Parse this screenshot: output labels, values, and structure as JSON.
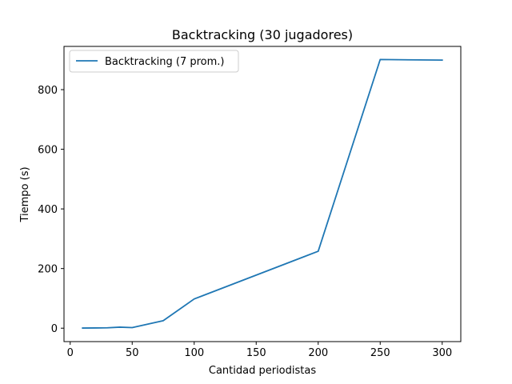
{
  "chart_data": {
    "type": "line",
    "title": "Backtracking (30 jugadores)",
    "xlabel": "Cantidad periodistas",
    "ylabel": "Tiempo (s)",
    "xlim": [
      -5,
      315
    ],
    "ylim": [
      -45,
      945
    ],
    "xticks": [
      0,
      50,
      100,
      150,
      200,
      250,
      300
    ],
    "yticks": [
      0,
      200,
      400,
      600,
      800
    ],
    "grid": false,
    "legend_position": "top-left",
    "series": [
      {
        "name": "Backtracking (7 prom.)",
        "color": "#1f77b4",
        "x": [
          10,
          20,
          30,
          40,
          50,
          75,
          100,
          200,
          250,
          300
        ],
        "y": [
          0.5,
          0.8,
          1.2,
          3.5,
          2.0,
          25,
          98,
          258,
          901,
          899
        ]
      }
    ]
  }
}
